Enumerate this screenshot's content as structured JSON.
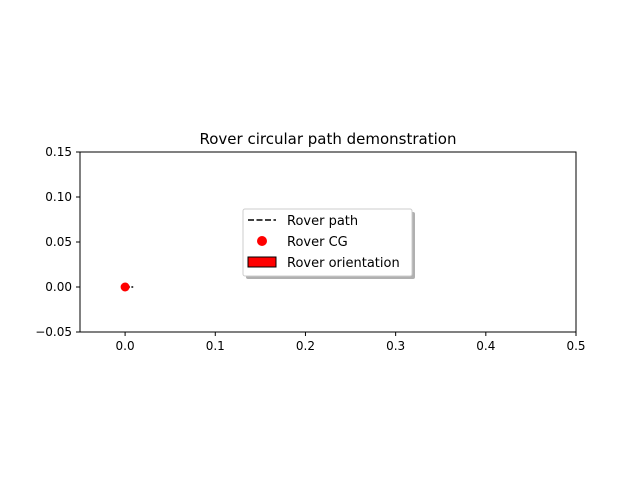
{
  "chart_data": {
    "type": "scatter",
    "title": "Rover circular path demonstration",
    "xlabel": "",
    "ylabel": "",
    "xlim": [
      -0.05,
      0.5
    ],
    "ylim": [
      -0.05,
      0.15
    ],
    "xticks": [
      "0.0",
      "0.1",
      "0.2",
      "0.3",
      "0.4",
      "0.5"
    ],
    "yticks": [
      "−0.05",
      "0.00",
      "0.05",
      "0.10",
      "0.15"
    ],
    "xtick_values": [
      0.0,
      0.1,
      0.2,
      0.3,
      0.4,
      0.5
    ],
    "ytick_values": [
      -0.05,
      0.0,
      0.05,
      0.1,
      0.15
    ],
    "grid": false,
    "legend_position": "center",
    "legend": [
      {
        "label": "Rover path",
        "kind": "dashed-line",
        "color": "#000000"
      },
      {
        "label": "Rover CG",
        "kind": "marker",
        "color": "#ff0000"
      },
      {
        "label": "Rover orientation",
        "kind": "patch",
        "color": "#ff0000"
      }
    ],
    "series": [
      {
        "name": "Rover path",
        "style": "dashed",
        "color": "#000000",
        "x": [
          0.002,
          0.009
        ],
        "y": [
          0.0,
          0.0
        ]
      },
      {
        "name": "Rover CG",
        "style": "marker",
        "color": "#ff0000",
        "x": [
          0.0
        ],
        "y": [
          0.0
        ]
      }
    ]
  }
}
